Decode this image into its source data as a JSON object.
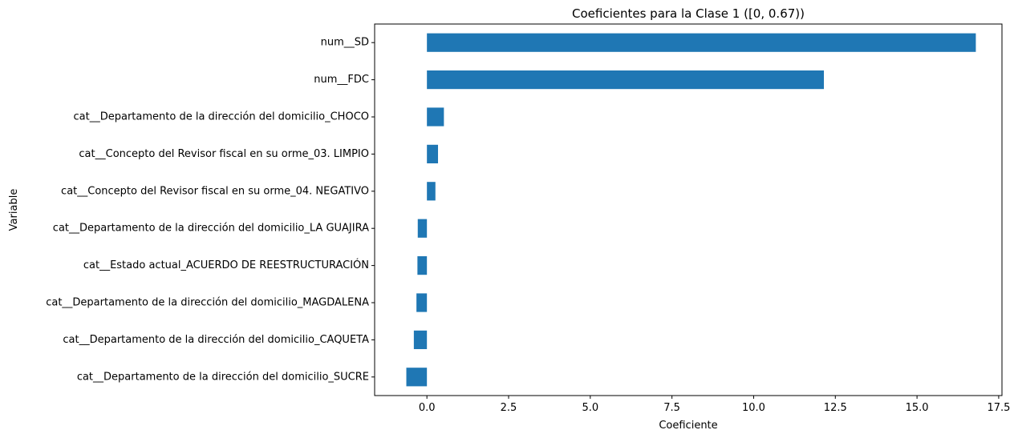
{
  "chart_data": {
    "type": "bar",
    "orientation": "horizontal",
    "title": "Coeficientes para la Clase 1 ([0, 0.67))",
    "xlabel": "Coeficiente",
    "ylabel": "Variable",
    "categories": [
      "num__SD",
      "num__FDC",
      "cat__Departamento de la dirección del domicilio_CHOCO",
      "cat__Concepto del Revisor fiscal en su orme_03. LIMPIO",
      "cat__Concepto del Revisor fiscal en su orme_04. NEGATIVO",
      "cat__Departamento de la dirección del domicilio_LA GUAJIRA",
      "cat__Estado actual_ACUERDO DE REESTRUCTURACIÓN",
      "cat__Departamento de la dirección del domicilio_MAGDALENA",
      "cat__Departamento de la dirección del domicilio_CAQUETA",
      "cat__Departamento de la dirección del domicilio_SUCRE"
    ],
    "values": [
      16.8,
      12.15,
      0.52,
      0.34,
      0.26,
      -0.28,
      -0.29,
      -0.32,
      -0.4,
      -0.63
    ],
    "xlim": [
      -1.6,
      17.6
    ],
    "xticks": [
      0.0,
      2.5,
      5.0,
      7.5,
      10.0,
      12.5,
      15.0,
      17.5
    ],
    "xtick_labels": [
      "0.0",
      "2.5",
      "5.0",
      "7.5",
      "10.0",
      "12.5",
      "15.0",
      "17.5"
    ],
    "grid": false,
    "legend": "none",
    "bar_color": "#1f77b4"
  }
}
